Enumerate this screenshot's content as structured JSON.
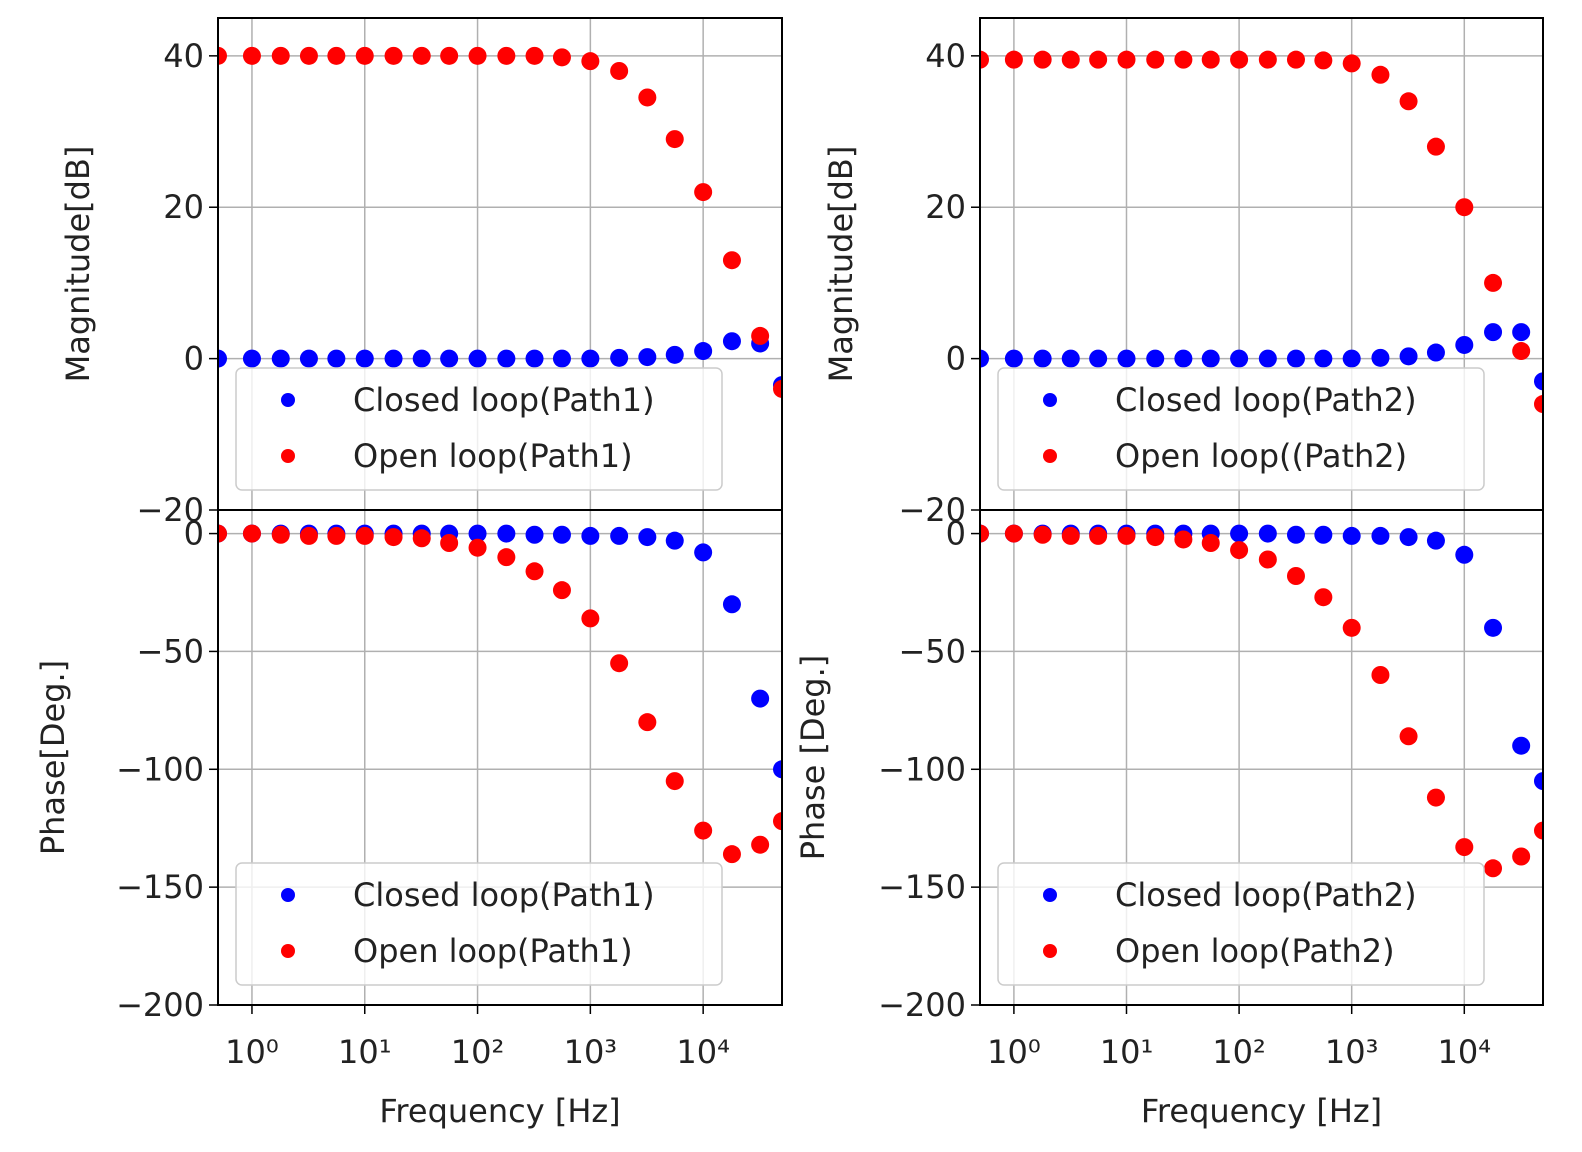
{
  "chart_data": [
    {
      "type": "scatter",
      "ylabel": "Magnitude[dB]",
      "log_x": true,
      "grid": true,
      "legend": "lower left",
      "xlim": [
        0.5,
        50000
      ],
      "xticks": [
        1,
        10,
        100,
        1000,
        10000
      ],
      "ylim": [
        -20,
        45
      ],
      "yticks": [
        {
          "value": -20,
          "label": "−20"
        },
        0,
        20,
        40
      ],
      "x": [
        0.5,
        1,
        1.8,
        3.2,
        5.6,
        10,
        18,
        32,
        56,
        100,
        180,
        320,
        560,
        1000,
        1800,
        3200,
        5600,
        10000,
        18000,
        32000,
        50000
      ],
      "series": [
        {
          "name": "Closed loop(Path1)",
          "color": "#0000ff",
          "values": [
            0,
            0,
            0,
            0,
            0,
            0,
            0,
            0,
            0,
            0,
            0,
            0,
            0,
            0,
            0.1,
            0.2,
            0.5,
            1,
            2.3,
            2,
            -3.5
          ]
        },
        {
          "name": "Open loop(Path1)",
          "color": "#ff0000",
          "values": [
            40,
            40,
            40,
            40,
            40,
            40,
            40,
            40,
            40,
            40,
            40,
            40,
            39.8,
            39.3,
            38,
            34.5,
            29,
            22,
            13,
            3,
            -4
          ]
        }
      ]
    },
    {
      "type": "scatter",
      "ylabel": "Magnitude[dB]",
      "log_x": true,
      "grid": true,
      "legend": "lower left",
      "xlim": [
        0.5,
        50000
      ],
      "xticks": [
        1,
        10,
        100,
        1000,
        10000
      ],
      "ylim": [
        -20,
        45
      ],
      "yticks": [
        {
          "value": -20,
          "label": "−20"
        },
        0,
        20,
        40
      ],
      "x": [
        0.5,
        1,
        1.8,
        3.2,
        5.6,
        10,
        18,
        32,
        56,
        100,
        180,
        320,
        560,
        1000,
        1800,
        3200,
        5600,
        10000,
        18000,
        32000,
        50000
      ],
      "series": [
        {
          "name": "Closed loop(Path2)",
          "color": "#0000ff",
          "values": [
            0,
            0,
            0,
            0,
            0,
            0,
            0,
            0,
            0,
            0,
            0,
            0,
            0,
            0,
            0.1,
            0.3,
            0.8,
            1.8,
            3.5,
            3.5,
            -3
          ]
        },
        {
          "name": "Open loop((Path2)",
          "color": "#ff0000",
          "values": [
            39.5,
            39.5,
            39.5,
            39.5,
            39.5,
            39.5,
            39.5,
            39.5,
            39.5,
            39.5,
            39.5,
            39.5,
            39.4,
            39,
            37.5,
            34,
            28,
            20,
            10,
            1,
            -6
          ]
        }
      ]
    },
    {
      "type": "scatter",
      "ylabel": "Phase[Deg.]",
      "xlabel": "Frequency [Hz]",
      "log_x": true,
      "grid": true,
      "legend": "lower left",
      "xlim": [
        0.5,
        50000
      ],
      "xticks": [
        {
          "value": 1,
          "label": "10⁰"
        },
        {
          "value": 10,
          "label": "10¹"
        },
        {
          "value": 100,
          "label": "10²"
        },
        {
          "value": 1000,
          "label": "10³"
        },
        {
          "value": 10000,
          "label": "10⁴"
        }
      ],
      "ylim": [
        -200,
        10
      ],
      "yticks": [
        {
          "value": -200,
          "label": "−200"
        },
        {
          "value": -150,
          "label": "−150"
        },
        {
          "value": -100,
          "label": "−100"
        },
        {
          "value": -50,
          "label": "−50"
        },
        0
      ],
      "x": [
        0.5,
        1,
        1.8,
        3.2,
        5.6,
        10,
        18,
        32,
        56,
        100,
        180,
        320,
        560,
        1000,
        1800,
        3200,
        5600,
        10000,
        18000,
        32000,
        50000
      ],
      "series": [
        {
          "name": "Closed loop(Path1)",
          "color": "#0000ff",
          "values": [
            0,
            0,
            0,
            0,
            0,
            0,
            0,
            0,
            0,
            0,
            0,
            -0.5,
            -0.5,
            -1,
            -1,
            -1.5,
            -3,
            -8,
            -30,
            -70,
            -100
          ]
        },
        {
          "name": "Open loop(Path1)",
          "color": "#ff0000",
          "values": [
            0,
            0,
            -0.5,
            -1,
            -1,
            -1,
            -1.5,
            -2,
            -4,
            -6,
            -10,
            -16,
            -24,
            -36,
            -55,
            -80,
            -105,
            -126,
            -136,
            -132,
            -122
          ]
        }
      ]
    },
    {
      "type": "scatter",
      "ylabel": "Phase [Deg.]",
      "xlabel": "Frequency [Hz]",
      "log_x": true,
      "grid": true,
      "legend": "lower left",
      "xlim": [
        0.5,
        50000
      ],
      "xticks": [
        {
          "value": 1,
          "label": "10⁰"
        },
        {
          "value": 10,
          "label": "10¹"
        },
        {
          "value": 100,
          "label": "10²"
        },
        {
          "value": 1000,
          "label": "10³"
        },
        {
          "value": 10000,
          "label": "10⁴"
        }
      ],
      "ylim": [
        -200,
        10
      ],
      "yticks": [
        {
          "value": -200,
          "label": "−200"
        },
        {
          "value": -150,
          "label": "−150"
        },
        {
          "value": -100,
          "label": "−100"
        },
        {
          "value": -50,
          "label": "−50"
        },
        0
      ],
      "x": [
        0.5,
        1,
        1.8,
        3.2,
        5.6,
        10,
        18,
        32,
        56,
        100,
        180,
        320,
        560,
        1000,
        1800,
        3200,
        5600,
        10000,
        18000,
        32000,
        50000
      ],
      "series": [
        {
          "name": "Closed loop(Path2)",
          "color": "#0000ff",
          "values": [
            0,
            0,
            0,
            0,
            0,
            0,
            0,
            0,
            0,
            0,
            0,
            -0.5,
            -0.5,
            -1,
            -1,
            -1.5,
            -3,
            -9,
            -40,
            -90,
            -105
          ]
        },
        {
          "name": "Open loop(Path2)",
          "color": "#ff0000",
          "values": [
            0,
            0,
            -0.5,
            -1,
            -1,
            -1,
            -1.5,
            -2.5,
            -4,
            -7,
            -11,
            -18,
            -27,
            -40,
            -60,
            -86,
            -112,
            -133,
            -142,
            -137,
            -126
          ]
        }
      ]
    }
  ]
}
